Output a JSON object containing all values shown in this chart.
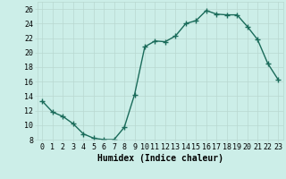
{
  "x": [
    0,
    1,
    2,
    3,
    4,
    5,
    6,
    7,
    8,
    9,
    10,
    11,
    12,
    13,
    14,
    15,
    16,
    17,
    18,
    19,
    20,
    21,
    22,
    23
  ],
  "y": [
    13.3,
    11.8,
    11.2,
    10.2,
    8.8,
    8.2,
    8.0,
    8.0,
    9.7,
    14.2,
    20.8,
    21.6,
    21.5,
    22.3,
    24.0,
    24.4,
    25.8,
    25.3,
    25.2,
    25.2,
    23.6,
    21.8,
    18.5,
    16.3
  ],
  "line_color": "#1a6b5a",
  "marker": "+",
  "bg_color": "#cceee8",
  "grid_color": "#b8d8d0",
  "xlabel": "Humidex (Indice chaleur)",
  "xlabel_fontsize": 7,
  "xlim": [
    -0.5,
    23.5
  ],
  "ylim": [
    8,
    27
  ],
  "yticks": [
    8,
    10,
    12,
    14,
    16,
    18,
    20,
    22,
    24,
    26
  ],
  "xticks": [
    0,
    1,
    2,
    3,
    4,
    5,
    6,
    7,
    8,
    9,
    10,
    11,
    12,
    13,
    14,
    15,
    16,
    17,
    18,
    19,
    20,
    21,
    22,
    23
  ],
  "tick_fontsize": 6,
  "linewidth": 1.0,
  "markersize": 4,
  "markeredgewidth": 1.0
}
